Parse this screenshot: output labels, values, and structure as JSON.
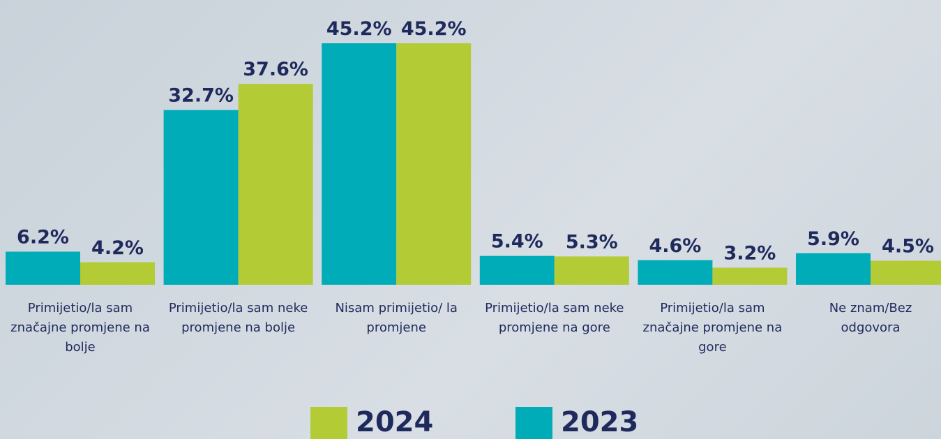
{
  "chart_data": {
    "type": "bar",
    "categories": [
      "Primijetio/la sam značajne promjene na bolje",
      "Primijetio/la sam neke promjene na bolje",
      "Nisam primijetio/ la promjene",
      "Primijetio/la sam neke promjene na gore",
      "Primijetio/la sam značajne promjene na gore",
      "Ne znam/Bez odgovora"
    ],
    "series": [
      {
        "name": "2023",
        "color": "#00acb8",
        "values": [
          6.2,
          32.7,
          45.2,
          5.4,
          4.6,
          5.9
        ],
        "value_labels": [
          "6.2%",
          "32.7%",
          "45.2%",
          "5.4%",
          "4.6%",
          "5.9%"
        ]
      },
      {
        "name": "2024",
        "color": "#b3cb35",
        "values": [
          4.2,
          37.6,
          45.2,
          5.3,
          3.2,
          4.5
        ],
        "value_labels": [
          "4.2%",
          "37.6%",
          "45.2%",
          "5.3%",
          "3.2%",
          "4.5%"
        ]
      }
    ],
    "legend": "bottom"
  }
}
